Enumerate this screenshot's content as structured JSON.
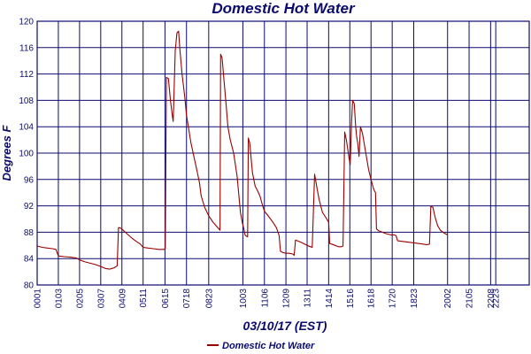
{
  "chart_data": {
    "type": "line",
    "title": "Domestic Hot Water",
    "xlabel": "03/10/17 (EST)",
    "ylabel": "Degrees F",
    "ylim": [
      80,
      120
    ],
    "yticks": [
      80,
      84,
      88,
      92,
      96,
      100,
      104,
      108,
      112,
      116,
      120
    ],
    "xlim": [
      0,
      1440
    ],
    "x_units": "minutes since 00:01",
    "xtick_labels": [
      "0001",
      "0103",
      "0205",
      "0307",
      "0409",
      "0511",
      "0615",
      "0718",
      "0823",
      "1003",
      "1106",
      "1209",
      "1311",
      "1414",
      "1516",
      "1618",
      "1720",
      "1823",
      "2002",
      "2105",
      "2208",
      "2223"
    ],
    "xtick_positions": [
      0,
      62,
      124,
      186,
      248,
      310,
      374,
      437,
      502,
      602,
      665,
      728,
      790,
      853,
      915,
      977,
      1039,
      1102,
      1201,
      1264,
      1327,
      1342
    ],
    "grid": true,
    "legend": {
      "position": "bottom-center",
      "entries": [
        "Domestic Hot Water"
      ]
    },
    "colors": {
      "series": "#990000",
      "text": "#0b0b6e",
      "grid": "#0b0b6e"
    },
    "series": [
      {
        "name": "Domestic Hot Water",
        "points": [
          [
            0,
            85.9
          ],
          [
            15,
            85.7
          ],
          [
            30,
            85.6
          ],
          [
            45,
            85.5
          ],
          [
            55,
            85.4
          ],
          [
            62,
            84.4
          ],
          [
            80,
            84.3
          ],
          [
            100,
            84.2
          ],
          [
            115,
            84.1
          ],
          [
            124,
            83.8
          ],
          [
            140,
            83.5
          ],
          [
            155,
            83.3
          ],
          [
            170,
            83.1
          ],
          [
            186,
            82.8
          ],
          [
            200,
            82.5
          ],
          [
            212,
            82.4
          ],
          [
            225,
            82.6
          ],
          [
            234,
            82.9
          ],
          [
            238,
            88.7
          ],
          [
            245,
            88.6
          ],
          [
            252,
            88.3
          ],
          [
            262,
            87.8
          ],
          [
            275,
            87.2
          ],
          [
            290,
            86.6
          ],
          [
            302,
            86.2
          ],
          [
            310,
            85.7
          ],
          [
            325,
            85.6
          ],
          [
            340,
            85.5
          ],
          [
            355,
            85.4
          ],
          [
            365,
            85.4
          ],
          [
            372,
            85.4
          ],
          [
            375,
            85.5
          ],
          [
            378,
            111.5
          ],
          [
            384,
            111.3
          ],
          [
            390,
            108.0
          ],
          [
            396,
            105.5
          ],
          [
            398,
            104.8
          ],
          [
            400,
            108.0
          ],
          [
            404,
            115.5
          ],
          [
            409,
            118.2
          ],
          [
            414,
            118.5
          ],
          [
            418,
            115.5
          ],
          [
            424,
            112.0
          ],
          [
            432,
            108.5
          ],
          [
            437,
            105.8
          ],
          [
            450,
            101.5
          ],
          [
            465,
            98.0
          ],
          [
            475,
            95.5
          ],
          [
            480,
            93.5
          ],
          [
            490,
            91.8
          ],
          [
            502,
            90.5
          ],
          [
            515,
            89.5
          ],
          [
            530,
            88.6
          ],
          [
            535,
            88.3
          ],
          [
            537,
            115.0
          ],
          [
            541,
            114.5
          ],
          [
            546,
            111.5
          ],
          [
            552,
            108.0
          ],
          [
            558,
            104.0
          ],
          [
            565,
            102.0
          ],
          [
            575,
            100.0
          ],
          [
            585,
            96.5
          ],
          [
            595,
            91.0
          ],
          [
            600,
            89.5
          ],
          [
            605,
            88.5
          ],
          [
            608,
            87.6
          ],
          [
            612,
            87.4
          ],
          [
            616,
            87.3
          ],
          [
            618,
            102.3
          ],
          [
            622,
            101.5
          ],
          [
            630,
            97.0
          ],
          [
            638,
            95.0
          ],
          [
            645,
            94.3
          ],
          [
            652,
            93.5
          ],
          [
            660,
            92.0
          ],
          [
            665,
            91.2
          ],
          [
            680,
            90.2
          ],
          [
            690,
            89.5
          ],
          [
            700,
            88.7
          ],
          [
            708,
            87.5
          ],
          [
            712,
            85.1
          ],
          [
            720,
            84.9
          ],
          [
            728,
            84.8
          ],
          [
            738,
            84.8
          ],
          [
            748,
            84.7
          ],
          [
            752,
            84.5
          ],
          [
            756,
            86.8
          ],
          [
            762,
            86.7
          ],
          [
            775,
            86.4
          ],
          [
            790,
            86.0
          ],
          [
            800,
            85.8
          ],
          [
            805,
            85.7
          ],
          [
            812,
            96.8
          ],
          [
            818,
            95.0
          ],
          [
            825,
            93.0
          ],
          [
            835,
            91.0
          ],
          [
            845,
            90.2
          ],
          [
            853,
            89.5
          ],
          [
            856,
            86.3
          ],
          [
            862,
            86.2
          ],
          [
            872,
            86.0
          ],
          [
            882,
            85.8
          ],
          [
            890,
            85.8
          ],
          [
            895,
            85.9
          ],
          [
            900,
            103.2
          ],
          [
            905,
            102.0
          ],
          [
            912,
            99.5
          ],
          [
            916,
            98.2
          ],
          [
            920,
            104.5
          ],
          [
            923,
            108.0
          ],
          [
            928,
            107.5
          ],
          [
            932,
            104.0
          ],
          [
            935,
            102.5
          ],
          [
            938,
            101.5
          ],
          [
            942,
            99.5
          ],
          [
            946,
            104.0
          ],
          [
            952,
            103.0
          ],
          [
            960,
            100.5
          ],
          [
            970,
            97.5
          ],
          [
            977,
            96.0
          ],
          [
            985,
            94.5
          ],
          [
            990,
            94.0
          ],
          [
            993,
            88.5
          ],
          [
            1000,
            88.2
          ],
          [
            1010,
            88.0
          ],
          [
            1020,
            87.8
          ],
          [
            1035,
            87.6
          ],
          [
            1045,
            87.6
          ],
          [
            1050,
            87.5
          ],
          [
            1055,
            86.7
          ],
          [
            1070,
            86.6
          ],
          [
            1085,
            86.5
          ],
          [
            1100,
            86.4
          ],
          [
            1115,
            86.3
          ],
          [
            1130,
            86.2
          ],
          [
            1140,
            86.1
          ],
          [
            1148,
            86.2
          ],
          [
            1152,
            91.9
          ],
          [
            1158,
            91.8
          ],
          [
            1165,
            90.2
          ],
          [
            1172,
            89.0
          ],
          [
            1180,
            88.3
          ],
          [
            1190,
            87.9
          ],
          [
            1201,
            87.6
          ]
        ]
      }
    ]
  }
}
